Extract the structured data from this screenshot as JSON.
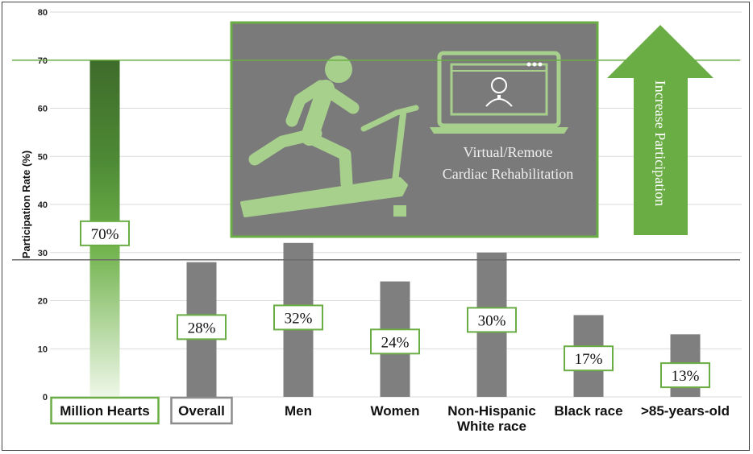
{
  "chart_data": {
    "type": "bar",
    "ylabel": "Participation Rate (%)",
    "ylim": [
      0,
      80
    ],
    "yticks": [
      0,
      10,
      20,
      30,
      40,
      50,
      60,
      70,
      80
    ],
    "grid": true,
    "categories": [
      "Million Hearts",
      "Overall",
      "Men",
      "Women",
      "Non-Hispanic White race",
      "Black race",
      ">85-years-old"
    ],
    "category_lines": [
      [
        "Million Hearts"
      ],
      [
        "Overall"
      ],
      [
        "Men"
      ],
      [
        "Women"
      ],
      [
        "Non-Hispanic",
        "White race"
      ],
      [
        "Black race"
      ],
      [
        ">85-years-old"
      ]
    ],
    "values": [
      70,
      28,
      32,
      24,
      30,
      17,
      13
    ],
    "value_labels": [
      "70%",
      "28%",
      "32%",
      "24%",
      "30%",
      "17%",
      "13%"
    ],
    "label_values": [
      34,
      14.5,
      16.5,
      11.5,
      16,
      8,
      4.5
    ],
    "boxed_categories": [
      0,
      1
    ],
    "target_line": 70,
    "overall_line": 28.5,
    "colors": {
      "goal_bar_dark": "#3e6b2a",
      "goal_bar_mid": "#6fb24a",
      "goal_bar_light": "#eef7e8",
      "bar": "#7f7f7f",
      "accent": "#6aad44",
      "panel": "#7a7a7a",
      "panel_border": "#6aad44",
      "icon": "#a8d08d"
    },
    "annotations": {
      "panel_text": [
        "Virtual/Remote",
        "Cardiac Rehabilitation"
      ],
      "arrow_text": "Increase Participation"
    }
  }
}
